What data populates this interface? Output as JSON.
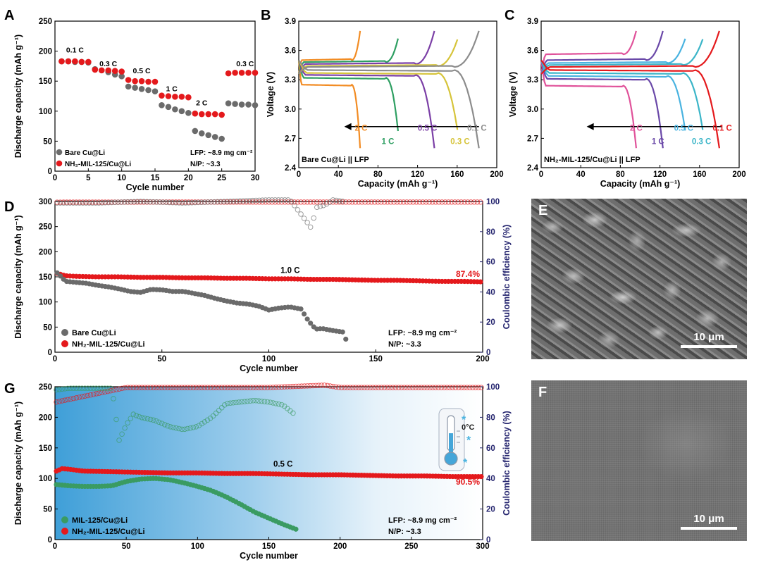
{
  "colors": {
    "red": "#e4191c",
    "gray": "#6b6b6b",
    "green": "#3a9b62",
    "navy": "#24246e",
    "orange": "#f28c24",
    "green1c": "#2e9f62",
    "purple": "#7b3fa6",
    "yellow": "#d6c43a",
    "lgray": "#8c8c8c",
    "pink": "#e0529a",
    "dpurple": "#6a48a8",
    "skyblue": "#49b3e0",
    "cyan": "#3bb5c8"
  },
  "panels": {
    "A": {
      "label": "A",
      "xlabel": "Cycle number",
      "ylabel": "Discharge capacity (mAh g⁻¹)",
      "xlim": [
        0,
        30
      ],
      "ylim": [
        0,
        250
      ],
      "xticks": [
        "0",
        "5",
        "10",
        "15",
        "20",
        "25",
        "30"
      ],
      "yticks": [
        "0",
        "50",
        "100",
        "150",
        "200",
        "250"
      ],
      "rate_labels": [
        {
          "text": "0.1 C",
          "x": 3,
          "y": 198
        },
        {
          "text": "0.3 C",
          "x": 8,
          "y": 175
        },
        {
          "text": "0.5 C",
          "x": 13,
          "y": 163
        },
        {
          "text": "1 C",
          "x": 17.5,
          "y": 133
        },
        {
          "text": "2 C",
          "x": 22,
          "y": 110
        },
        {
          "text": "0.3 C",
          "x": 28.5,
          "y": 175
        }
      ],
      "legend": [
        "Bare Cu@Li",
        "NH₂-MIL-125/Cu@Li"
      ],
      "note_lines": [
        "LFP: ~8.9 mg cm⁻²",
        "N/P: ~3.3"
      ]
    },
    "B": {
      "label": "B",
      "xlabel": "Capacity (mAh g⁻¹)",
      "ylabel": "Voltage (V)",
      "inner_label": "Bare Cu@Li || LFP",
      "xlim": [
        0,
        200
      ],
      "ylim": [
        2.4,
        3.9
      ],
      "xticks": [
        "0",
        "40",
        "80",
        "120",
        "160",
        "200"
      ],
      "yticks": [
        "2.4",
        "2.7",
        "3.0",
        "3.3",
        "3.6",
        "3.9"
      ],
      "rate_labels": [
        {
          "text": "2 C",
          "x": 63,
          "y": 2.78,
          "color": "orange"
        },
        {
          "text": "1 C",
          "x": 90,
          "y": 2.64,
          "color": "green1c"
        },
        {
          "text": "0.5 C",
          "x": 130,
          "y": 2.78,
          "color": "purple"
        },
        {
          "text": "0.3 C",
          "x": 163,
          "y": 2.64,
          "color": "yellow"
        },
        {
          "text": "0.1 C",
          "x": 180,
          "y": 2.78,
          "color": "lgray"
        }
      ]
    },
    "C": {
      "label": "C",
      "xlabel": "Capacity (mAh g⁻¹)",
      "ylabel": "Voltage (V)",
      "inner_label": "NH₂-MIL-125/Cu@Li || LFP",
      "xlim": [
        0,
        200
      ],
      "ylim": [
        2.4,
        3.9
      ],
      "xticks": [
        "0",
        "40",
        "80",
        "120",
        "160",
        "200"
      ],
      "yticks": [
        "2.4",
        "2.7",
        "3.0",
        "3.3",
        "3.6",
        "3.9"
      ],
      "rate_labels": [
        {
          "text": "2 C",
          "x": 96,
          "y": 2.78,
          "color": "pink"
        },
        {
          "text": "1 C",
          "x": 118,
          "y": 2.64,
          "color": "dpurple"
        },
        {
          "text": "0.5 C",
          "x": 144,
          "y": 2.78,
          "color": "skyblue"
        },
        {
          "text": "0.3 C",
          "x": 162,
          "y": 2.64,
          "color": "cyan"
        },
        {
          "text": "0.1 C",
          "x": 183,
          "y": 2.78,
          "color": "red"
        }
      ]
    },
    "D": {
      "label": "D",
      "xlabel": "Cycle number",
      "ylabel": "Discharge capacity (mAh g⁻¹)",
      "ylabel2": "Coulombic efficiency (%)",
      "xlim": [
        0,
        200
      ],
      "ylim": [
        0,
        300
      ],
      "y2lim": [
        0,
        100
      ],
      "xticks": [
        "0",
        "50",
        "100",
        "150",
        "200"
      ],
      "yticks": [
        "0",
        "50",
        "100",
        "150",
        "200",
        "250",
        "300"
      ],
      "y2ticks": [
        "0",
        "20",
        "40",
        "60",
        "80",
        "100"
      ],
      "rate_label": "1.0 C",
      "retention": "87.4%",
      "legend": [
        "Bare Cu@Li",
        "NH₂-MIL-125/Cu@Li"
      ],
      "note_lines": [
        "LFP: ~8.9 mg cm⁻²",
        "N/P: ~3.3"
      ]
    },
    "G": {
      "label": "G",
      "xlabel": "Cycle number",
      "ylabel": "Discharge capacity (mAh g⁻¹)",
      "ylabel2": "Coulombic efficiency (%)",
      "xlim": [
        0,
        300
      ],
      "ylim": [
        0,
        250
      ],
      "y2lim": [
        0,
        100
      ],
      "xticks": [
        "0",
        "50",
        "100",
        "150",
        "200",
        "250",
        "300"
      ],
      "yticks": [
        "0",
        "50",
        "100",
        "150",
        "200",
        "250"
      ],
      "y2ticks": [
        "0",
        "20",
        "40",
        "60",
        "80",
        "100"
      ],
      "rate_label": "0.5 C",
      "retention": "90.5%",
      "temp_label": "0°C",
      "legend": [
        "MIL-125/Cu@Li",
        "NH₂-MIL-125/Cu@Li"
      ],
      "note_lines": [
        "LFP: ~8.9 mg cm⁻²",
        "N/P: ~3.3"
      ]
    },
    "E": {
      "label": "E",
      "scale": "10 μm"
    },
    "F": {
      "label": "F",
      "scale": "10 μm"
    }
  },
  "chart_data": [
    {
      "panel": "A",
      "type": "scatter",
      "series": [
        {
          "name": "Bare Cu@Li",
          "color": "gray",
          "x": [
            1,
            2,
            3,
            4,
            5,
            6,
            7,
            8,
            9,
            10,
            11,
            12,
            13,
            14,
            15,
            16,
            17,
            18,
            19,
            20,
            21,
            22,
            23,
            24,
            25,
            26,
            27,
            28,
            29,
            30
          ],
          "values": [
            183,
            183,
            182,
            182,
            181,
            170,
            168,
            165,
            161,
            158,
            141,
            139,
            137,
            135,
            133,
            110,
            107,
            103,
            100,
            97,
            67,
            63,
            60,
            57,
            54,
            113,
            112,
            111,
            111,
            110
          ]
        },
        {
          "name": "NH₂-MIL-125/Cu@Li",
          "color": "red",
          "x": [
            1,
            2,
            3,
            4,
            5,
            6,
            7,
            8,
            9,
            10,
            11,
            12,
            13,
            14,
            15,
            16,
            17,
            18,
            19,
            20,
            21,
            22,
            23,
            24,
            25,
            26,
            27,
            28,
            29,
            30
          ],
          "values": [
            183,
            183,
            183,
            182,
            182,
            169,
            168,
            168,
            167,
            166,
            152,
            150,
            150,
            149,
            149,
            126,
            125,
            124,
            124,
            123,
            96,
            95,
            95,
            95,
            94,
            163,
            164,
            164,
            164,
            164
          ]
        }
      ]
    },
    {
      "panel": "B",
      "type": "line",
      "note": "charge/discharge voltage profiles",
      "series": [
        {
          "name": "2 C",
          "color": "orange",
          "capacity": 62,
          "charge_plateau": 3.5,
          "discharge_plateau": 3.25
        },
        {
          "name": "1 C",
          "color": "green1c",
          "capacity": 102,
          "charge_plateau": 3.48,
          "discharge_plateau": 3.32
        },
        {
          "name": "0.5 C",
          "color": "purple",
          "capacity": 137,
          "charge_plateau": 3.46,
          "discharge_plateau": 3.35
        },
        {
          "name": "0.3 C",
          "color": "yellow",
          "capacity": 163,
          "charge_plateau": 3.44,
          "discharge_plateau": 3.37
        },
        {
          "name": "0.1 C",
          "color": "lgray",
          "capacity": 182,
          "charge_plateau": 3.43,
          "discharge_plateau": 3.4
        }
      ]
    },
    {
      "panel": "C",
      "type": "line",
      "note": "charge/discharge voltage profiles",
      "series": [
        {
          "name": "2 C",
          "color": "pink",
          "capacity": 96,
          "charge_plateau": 3.56,
          "discharge_plateau": 3.24
        },
        {
          "name": "1 C",
          "color": "dpurple",
          "capacity": 123,
          "charge_plateau": 3.5,
          "discharge_plateau": 3.31
        },
        {
          "name": "0.5 C",
          "color": "skyblue",
          "capacity": 148,
          "charge_plateau": 3.47,
          "discharge_plateau": 3.34
        },
        {
          "name": "0.3 C",
          "color": "cyan",
          "capacity": 166,
          "charge_plateau": 3.45,
          "discharge_plateau": 3.37
        },
        {
          "name": "0.1 C",
          "color": "red",
          "capacity": 180,
          "charge_plateau": 3.43,
          "discharge_plateau": 3.4
        }
      ]
    },
    {
      "panel": "D",
      "type": "scatter",
      "series": [
        {
          "name": "NH₂-MIL-125/Cu@Li capacity",
          "color": "red",
          "axis": "left",
          "x": [
            1,
            5,
            10,
            20,
            30,
            40,
            50,
            60,
            70,
            80,
            90,
            100,
            110,
            120,
            130,
            140,
            150,
            160,
            170,
            180,
            190,
            200
          ],
          "values": [
            157,
            152,
            151,
            150,
            150,
            149,
            149,
            148,
            148,
            147,
            147,
            146,
            146,
            145,
            145,
            144,
            143,
            143,
            142,
            141,
            141,
            140
          ]
        },
        {
          "name": "Bare Cu@Li capacity",
          "color": "gray",
          "axis": "left",
          "x": [
            1,
            5,
            10,
            15,
            20,
            25,
            30,
            35,
            40,
            45,
            50,
            55,
            60,
            65,
            70,
            75,
            80,
            85,
            90,
            95,
            100,
            105,
            110,
            115,
            118,
            120,
            122,
            125,
            130,
            135,
            137
          ],
          "values": [
            158,
            141,
            139,
            137,
            133,
            130,
            126,
            121,
            119,
            125,
            124,
            121,
            121,
            117,
            113,
            107,
            102,
            98,
            96,
            92,
            84,
            88,
            90,
            86,
            66,
            55,
            46,
            47,
            43,
            40,
            12
          ]
        },
        {
          "name": "NH₂-MIL-125/Cu@Li CE",
          "color": "red",
          "axis": "right",
          "x": [
            1,
            50,
            100,
            150,
            200
          ],
          "values": [
            99.5,
            99.6,
            99.6,
            99.6,
            99.6
          ]
        },
        {
          "name": "Bare Cu@Li CE",
          "color": "gray",
          "axis": "right",
          "x": [
            1,
            20,
            40,
            60,
            80,
            100,
            110,
            118,
            120,
            122,
            125,
            128,
            130,
            135
          ],
          "values": [
            99,
            99,
            100,
            99,
            100,
            101,
            101,
            86,
            82,
            96,
            97,
            99,
            101,
            100
          ]
        }
      ]
    },
    {
      "panel": "G",
      "type": "scatter",
      "series": [
        {
          "name": "NH₂-MIL-125/Cu@Li capacity",
          "color": "red",
          "axis": "left",
          "x": [
            1,
            5,
            10,
            20,
            40,
            60,
            80,
            100,
            120,
            140,
            160,
            180,
            200,
            220,
            240,
            260,
            280,
            300
          ],
          "values": [
            112,
            116,
            115,
            112,
            111,
            110,
            109,
            109,
            108,
            108,
            107,
            106,
            106,
            105,
            104,
            104,
            103,
            103
          ]
        },
        {
          "name": "MIL-125/Cu@Li capacity",
          "color": "green",
          "axis": "left",
          "x": [
            1,
            10,
            20,
            30,
            40,
            50,
            60,
            70,
            80,
            90,
            100,
            110,
            120,
            130,
            140,
            150,
            160,
            169
          ],
          "values": [
            90,
            88,
            87,
            87,
            88,
            95,
            99,
            100,
            98,
            93,
            87,
            80,
            70,
            58,
            45,
            35,
            25,
            17
          ]
        },
        {
          "name": "NH₂-MIL-125/Cu@Li CE",
          "color": "red",
          "axis": "right",
          "x": [
            1,
            50,
            100,
            150,
            189,
            200,
            250,
            300
          ],
          "values": [
            90,
            99.5,
            99.5,
            99.5,
            101,
            99.5,
            99.5,
            99.5
          ]
        },
        {
          "name": "MIL-125/Cu@Li CE",
          "color": "green",
          "axis": "right",
          "x": [
            1,
            10,
            20,
            30,
            40,
            45,
            50,
            55,
            60,
            70,
            80,
            90,
            100,
            110,
            120,
            130,
            140,
            150,
            160,
            168
          ],
          "values": [
            98,
            99,
            99,
            99,
            99,
            65,
            75,
            82,
            80,
            78,
            74,
            72,
            74,
            80,
            89,
            90,
            91,
            90,
            88,
            82
          ]
        }
      ]
    }
  ]
}
